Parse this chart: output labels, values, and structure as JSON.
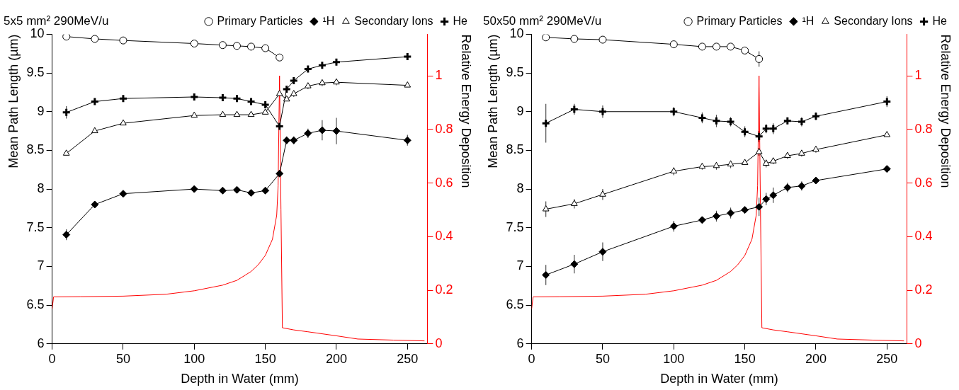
{
  "chart_data": [
    {
      "type": "line",
      "title": "5x5 mm² 290MeV/u",
      "xlabel": "Depth in Water (mm)",
      "ylabel": "Mean Path Length (µm)",
      "y2label": "Relative Energy Deposition",
      "x": [
        10,
        30,
        50,
        100,
        120,
        130,
        140,
        150,
        160,
        165,
        170,
        180,
        190,
        200,
        250
      ],
      "xlim": [
        0,
        264
      ],
      "xticks": [
        0,
        50,
        100,
        150,
        200,
        250
      ],
      "ylim": [
        6,
        10
      ],
      "yticks": [
        6,
        6.5,
        7,
        7.5,
        8,
        8.5,
        9,
        9.5,
        10
      ],
      "y2lim": [
        0,
        1.155
      ],
      "y2ticks": [
        0,
        0.2,
        0.4,
        0.6,
        0.8,
        1
      ],
      "legend": "top",
      "line_style": "solid",
      "series": [
        {
          "name": "Primary Particles",
          "color": "#000000",
          "marker": "circle",
          "values": [
            9.97,
            9.94,
            9.92,
            9.88,
            9.86,
            9.85,
            9.84,
            9.82,
            9.7,
            null,
            null,
            null,
            null,
            null,
            null
          ]
        },
        {
          "name": "¹H",
          "color": "#000000",
          "marker": "diamond",
          "values": [
            7.41,
            7.8,
            7.94,
            8.0,
            7.98,
            7.99,
            7.95,
            7.98,
            8.2,
            8.63,
            8.63,
            8.72,
            8.76,
            8.75,
            8.63
          ],
          "errors": [
            0.07,
            null,
            null,
            null,
            null,
            0.04,
            null,
            null,
            0.04,
            0.05,
            0.05,
            0.06,
            0.13,
            0.17,
            0.07
          ]
        },
        {
          "name": "Secondary Ions",
          "color": "#000000",
          "marker": "triangle",
          "values": [
            8.46,
            8.75,
            8.85,
            8.95,
            8.96,
            8.96,
            8.96,
            8.99,
            9.23,
            9.16,
            9.23,
            9.33,
            9.37,
            9.38,
            9.34
          ],
          "errors": [
            null,
            null,
            null,
            null,
            null,
            null,
            null,
            null,
            null,
            null,
            0.04,
            0.04,
            0.04,
            0.04,
            null
          ]
        },
        {
          "name": "He",
          "color": "#000000",
          "marker": "cross",
          "values": [
            8.99,
            9.13,
            9.17,
            9.19,
            9.18,
            9.17,
            9.13,
            9.09,
            8.81,
            9.29,
            9.4,
            9.55,
            9.6,
            9.64,
            9.71
          ],
          "errors": [
            0.08,
            null,
            null,
            null,
            null,
            null,
            null,
            null,
            null,
            null,
            null,
            null,
            null,
            null,
            null
          ]
        },
        {
          "type": "line",
          "axis": "y2",
          "color": "#ff0000",
          "marker": "none",
          "x": [
            0,
            1,
            20,
            50,
            80,
            100,
            120,
            130,
            140,
            145,
            150,
            155,
            158,
            159,
            160,
            161,
            162,
            170,
            180,
            200,
            215,
            240,
            262
          ],
          "values": [
            0.13,
            0.175,
            0.176,
            0.178,
            0.185,
            0.198,
            0.219,
            0.237,
            0.27,
            0.295,
            0.33,
            0.39,
            0.48,
            0.59,
            1.0,
            0.5,
            0.06,
            0.052,
            0.045,
            0.03,
            0.018,
            0.014,
            0.011
          ]
        }
      ]
    },
    {
      "type": "line",
      "title": "50x50 mm² 290MeV/u",
      "xlabel": "Depth in Water (mm)",
      "ylabel": "Mean Path Length (µm)",
      "y2label": "Relative Energy Deposition",
      "x": [
        10,
        30,
        50,
        100,
        120,
        130,
        140,
        150,
        160,
        165,
        170,
        180,
        190,
        200,
        250
      ],
      "xlim": [
        0,
        264
      ],
      "xticks": [
        0,
        50,
        100,
        150,
        200,
        250
      ],
      "ylim": [
        6,
        10
      ],
      "yticks": [
        6,
        6.5,
        7,
        7.5,
        8,
        8.5,
        9,
        9.5,
        10
      ],
      "y2lim": [
        0,
        1.155
      ],
      "y2ticks": [
        0,
        0.2,
        0.4,
        0.6,
        0.8,
        1
      ],
      "legend": "top",
      "line_style": "solid",
      "series": [
        {
          "name": "Primary Particles",
          "color": "#000000",
          "marker": "circle",
          "values": [
            9.96,
            9.94,
            9.93,
            9.87,
            9.84,
            9.84,
            9.84,
            9.79,
            9.68,
            null,
            null,
            null,
            null,
            null,
            null
          ],
          "errors": [
            null,
            null,
            null,
            null,
            null,
            null,
            null,
            null,
            0.1,
            null,
            null,
            null,
            null,
            null,
            null
          ]
        },
        {
          "name": "¹H",
          "color": "#000000",
          "marker": "diamond",
          "values": [
            6.89,
            7.03,
            7.19,
            7.52,
            7.6,
            7.65,
            7.69,
            7.73,
            7.77,
            7.87,
            7.92,
            8.02,
            8.04,
            8.11,
            8.26
          ],
          "errors": [
            0.13,
            0.12,
            0.12,
            0.07,
            0.04,
            0.07,
            0.07,
            0.04,
            0.12,
            0.08,
            0.1,
            0.06,
            0.06,
            0.04,
            null
          ]
        },
        {
          "name": "Secondary Ions",
          "color": "#000000",
          "marker": "triangle",
          "values": [
            7.74,
            7.81,
            7.93,
            8.23,
            8.29,
            8.3,
            8.32,
            8.34,
            8.48,
            8.33,
            8.36,
            8.43,
            8.46,
            8.51,
            8.7
          ],
          "errors": [
            0.1,
            0.06,
            0.07,
            0.05,
            0.04,
            0.05,
            0.05,
            null,
            0.05,
            0.05,
            0.04,
            0.04,
            0.04,
            0.04,
            null
          ]
        },
        {
          "name": "He",
          "color": "#000000",
          "marker": "cross",
          "values": [
            8.85,
            9.03,
            9.0,
            9.0,
            8.92,
            8.88,
            8.87,
            8.74,
            8.68,
            8.78,
            8.78,
            8.88,
            8.87,
            8.94,
            9.13
          ],
          "errors": [
            0.25,
            0.07,
            0.08,
            0.06,
            0.07,
            0.08,
            0.06,
            0.07,
            0.07,
            0.06,
            0.07,
            0.04,
            0.06,
            0.05,
            0.07
          ]
        },
        {
          "type": "line",
          "axis": "y2",
          "color": "#ff0000",
          "marker": "none",
          "x": [
            0,
            1,
            20,
            50,
            80,
            100,
            120,
            130,
            140,
            145,
            150,
            155,
            158,
            159,
            160,
            161,
            162,
            170,
            180,
            200,
            215,
            240,
            262
          ],
          "values": [
            0.13,
            0.175,
            0.176,
            0.178,
            0.185,
            0.198,
            0.219,
            0.237,
            0.27,
            0.295,
            0.33,
            0.39,
            0.48,
            0.59,
            1.0,
            0.5,
            0.06,
            0.052,
            0.045,
            0.03,
            0.018,
            0.014,
            0.011
          ]
        }
      ]
    }
  ]
}
